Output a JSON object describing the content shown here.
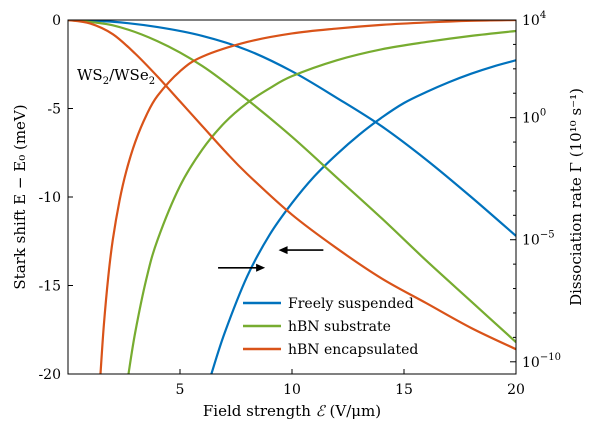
{
  "chart_data": {
    "type": "line",
    "annotation": {
      "main": "WS",
      "sub1": "2",
      "sep": "/WSe",
      "sub2": "2"
    },
    "xlabel": "Field strength",
    "xlabel_symbol": "ℰ",
    "xlabel_unit": "(V/μm)",
    "ylabel_left": "Stark shift E − E₀ (meV)",
    "ylabel_right": "Dissociation rate Γ (10¹⁰ s⁻¹)",
    "xlim": [
      0,
      20
    ],
    "ylim_left": [
      -20,
      0
    ],
    "ylim_right_log10": [
      -10.5,
      4
    ],
    "x_ticks": [
      {
        "value": 5,
        "label": "5"
      },
      {
        "value": 10,
        "label": "10"
      },
      {
        "value": 15,
        "label": "15"
      },
      {
        "value": 20,
        "label": "20"
      }
    ],
    "y_ticks_left": [
      {
        "value": 0,
        "label": "0"
      },
      {
        "value": -5,
        "label": "-5"
      },
      {
        "value": -10,
        "label": "-10"
      },
      {
        "value": -15,
        "label": "-15"
      },
      {
        "value": -20,
        "label": "-20"
      }
    ],
    "y_ticks_right": [
      {
        "value": 4,
        "base": "10",
        "exp": "4"
      },
      {
        "value": 0,
        "base": "10",
        "exp": "0"
      },
      {
        "value": -5,
        "base": "10",
        "exp": "−5"
      },
      {
        "value": -10,
        "base": "10",
        "exp": "−10"
      }
    ],
    "legend_position": "bottom-center",
    "arrows": [
      {
        "direction": "left",
        "x": [
          9.4,
          11.4
        ],
        "y": -13.0,
        "refers_to": "left axis"
      },
      {
        "direction": "right",
        "x": [
          6.7,
          8.8
        ],
        "y": -14.0,
        "refers_to": "right axis"
      }
    ],
    "series": [
      {
        "name": "Freely suspended",
        "color": "#0072BD",
        "stark_x": [
          0,
          2,
          4,
          6,
          8,
          10,
          12,
          14,
          16,
          18,
          20
        ],
        "stark_y": [
          0,
          -0.1,
          -0.4,
          -0.9,
          -1.7,
          -2.9,
          -4.4,
          -6.0,
          -7.9,
          -10.0,
          -12.2
        ],
        "rate_x": [
          6.4,
          7,
          8,
          9,
          10,
          11,
          12,
          13,
          14,
          15,
          16,
          17,
          18,
          19,
          20
        ],
        "rate_log10": [
          -10.5,
          -8.8,
          -6.5,
          -4.8,
          -3.5,
          -2.4,
          -1.5,
          -0.7,
          0.0,
          0.6,
          1.05,
          1.45,
          1.8,
          2.1,
          2.35
        ]
      },
      {
        "name": "hBN substrate",
        "color": "#77AC30",
        "stark_x": [
          0,
          2,
          4,
          6,
          8,
          10,
          12,
          14,
          16,
          18,
          20
        ],
        "stark_y": [
          0,
          -0.3,
          -1.2,
          -2.6,
          -4.5,
          -6.6,
          -8.9,
          -11.2,
          -13.6,
          -15.9,
          -18.2
        ],
        "rate_x": [
          2.7,
          3,
          3.5,
          4,
          5,
          6,
          7,
          8,
          9,
          10,
          12,
          14,
          16,
          18,
          20
        ],
        "rate_log10": [
          -10.5,
          -8.8,
          -6.6,
          -5.0,
          -2.8,
          -1.3,
          -0.2,
          0.6,
          1.2,
          1.7,
          2.35,
          2.8,
          3.1,
          3.35,
          3.55
        ]
      },
      {
        "name": "hBN encapsulated",
        "color": "#D95319",
        "stark_x": [
          0,
          1,
          2,
          3,
          4,
          5,
          6,
          7,
          8,
          10,
          12,
          14,
          16,
          18,
          20
        ],
        "stark_y": [
          0,
          -0.2,
          -0.8,
          -1.9,
          -3.2,
          -4.6,
          -6.0,
          -7.4,
          -8.7,
          -11.0,
          -12.9,
          -14.6,
          -16.0,
          -17.4,
          -18.6
        ],
        "rate_x": [
          1.45,
          1.6,
          1.8,
          2,
          2.3,
          2.6,
          3,
          3.5,
          4,
          5,
          6,
          8,
          10,
          12,
          14,
          16,
          18,
          20
        ],
        "rate_log10": [
          -10.5,
          -8.5,
          -6.5,
          -5.0,
          -3.4,
          -2.2,
          -1.0,
          0.1,
          0.9,
          1.9,
          2.5,
          3.1,
          3.45,
          3.65,
          3.8,
          3.9,
          3.97,
          4.0
        ]
      }
    ]
  }
}
